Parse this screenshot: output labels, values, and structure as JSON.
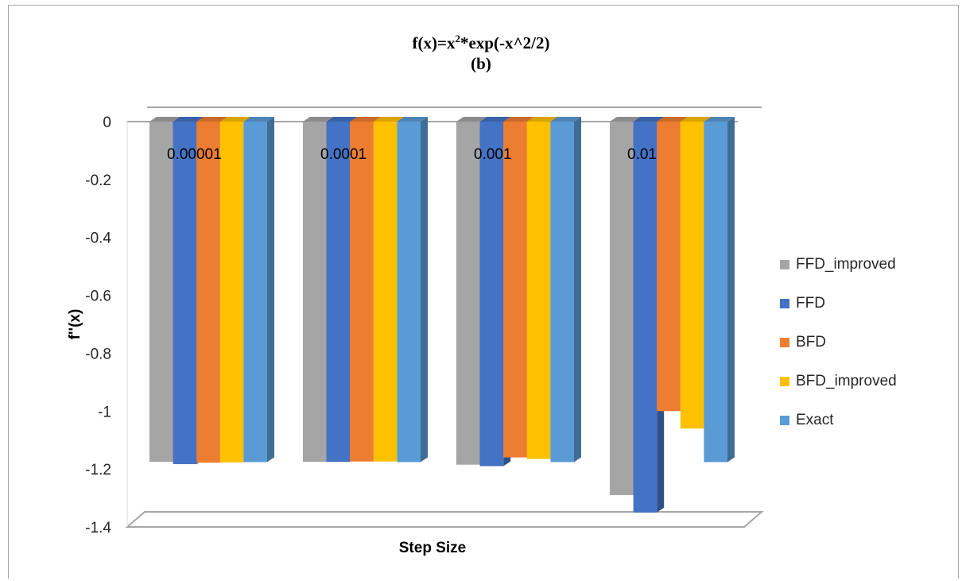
{
  "chart_data": {
    "type": "bar",
    "title_main": "f(x)=x",
    "title_sup": "2",
    "title_rest": "*exp(-x^2/2)",
    "subtitle": "(b)",
    "xlabel": "Step Size",
    "ylabel": "f''(x)",
    "ylim": [
      -1.4,
      0
    ],
    "yticks": [
      "0",
      "-0.2",
      "-0.4",
      "-0.6",
      "-0.8",
      "-1",
      "-1.2",
      "-1.4"
    ],
    "categories": [
      "0.00001",
      "0.0001",
      "0.001",
      "0.01"
    ],
    "legend_position": "right",
    "series": [
      {
        "name": "FFD_improved",
        "color": "#a5a5a5",
        "values": [
          -1.175,
          -1.175,
          -1.185,
          -1.29
        ]
      },
      {
        "name": "FFD",
        "color": "#4472c4",
        "values": [
          -1.183,
          -1.175,
          -1.19,
          -1.35
        ]
      },
      {
        "name": "BFD",
        "color": "#ed7d31",
        "values": [
          -1.178,
          -1.174,
          -1.16,
          -1.0
        ]
      },
      {
        "name": "BFD_improved",
        "color": "#ffc000",
        "values": [
          -1.177,
          -1.174,
          -1.165,
          -1.06
        ]
      },
      {
        "name": "Exact",
        "color": "#5b9bd5",
        "values": [
          -1.176,
          -1.176,
          -1.176,
          -1.176
        ]
      }
    ]
  }
}
